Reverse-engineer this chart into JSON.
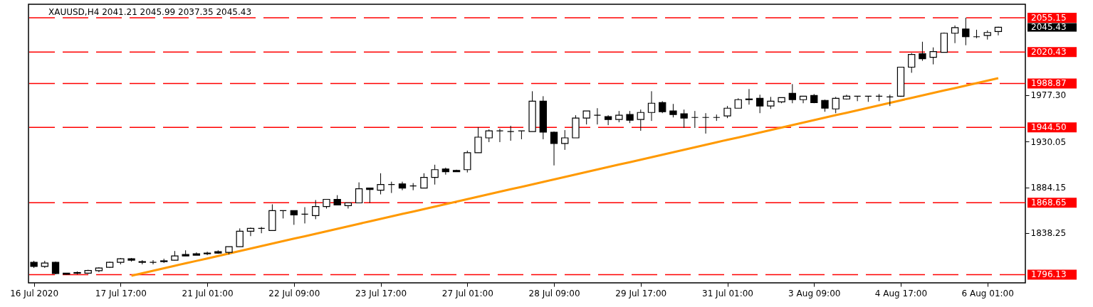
{
  "chart_data": {
    "type": "candlestick",
    "title": "XAUUSD,H4 2041.21 2045.99 2037.35 2045.43",
    "categories": [
      "16 Jul 2020",
      null,
      null,
      null,
      null,
      null,
      null,
      null,
      "17 Jul 17:00",
      null,
      null,
      null,
      null,
      null,
      null,
      null,
      "21 Jul 01:00",
      null,
      null,
      null,
      null,
      null,
      null,
      null,
      "22 Jul 09:00",
      null,
      null,
      null,
      null,
      null,
      null,
      null,
      "23 Jul 17:00",
      null,
      null,
      null,
      null,
      null,
      null,
      null,
      "27 Jul 01:00",
      null,
      null,
      null,
      null,
      null,
      null,
      null,
      "28 Jul 09:00",
      null,
      null,
      null,
      null,
      null,
      null,
      null,
      "29 Jul 17:00",
      null,
      null,
      null,
      null,
      null,
      null,
      null,
      "31 Jul 01:00",
      null,
      null,
      null,
      null,
      null,
      null,
      null,
      "3 Aug 09:00",
      null,
      null,
      null,
      null,
      null,
      null,
      null,
      "4 Aug 17:00",
      null,
      null,
      null,
      null,
      null,
      null,
      null,
      "6 Aug 01:00",
      null
    ],
    "ohlc": [
      [
        1808.5,
        1810.0,
        1802.8,
        1804.3
      ],
      [
        1804.3,
        1810.0,
        1802.8,
        1807.8
      ],
      [
        1808.5,
        1809.2,
        1796.4,
        1797.1
      ],
      [
        1797.5,
        1797.8,
        1796.13,
        1796.4
      ],
      [
        1797.5,
        1799.3,
        1796.4,
        1798.2
      ],
      [
        1797.5,
        1801.0,
        1796.8,
        1800.3
      ],
      [
        1800.0,
        1803.5,
        1798.5,
        1802.8
      ],
      [
        1803.5,
        1809.2,
        1802.8,
        1808.5
      ],
      [
        1808.5,
        1812.8,
        1806.4,
        1812.1
      ],
      [
        1812.1,
        1812.8,
        1809.2,
        1810.7
      ],
      [
        1809.2,
        1810.7,
        1806.4,
        1808.5
      ],
      [
        1808.5,
        1810.7,
        1806.4,
        1808.5
      ],
      [
        1809.2,
        1812.1,
        1807.8,
        1810.0
      ],
      [
        1810.7,
        1819.9,
        1810.4,
        1814.9
      ],
      [
        1816.4,
        1820.6,
        1814.9,
        1814.9
      ],
      [
        1817.1,
        1818.5,
        1815.7,
        1815.7
      ],
      [
        1817.1,
        1819.2,
        1815.7,
        1817.8
      ],
      [
        1819.2,
        1820.6,
        1817.1,
        1817.8
      ],
      [
        1818.5,
        1824.2,
        1816.4,
        1824.2
      ],
      [
        1824.2,
        1842.7,
        1824.2,
        1839.9
      ],
      [
        1839.9,
        1843.5,
        1834.9,
        1842.7
      ],
      [
        1842.7,
        1844.2,
        1837.8,
        1842.7
      ],
      [
        1840.6,
        1867.0,
        1840.6,
        1860.6
      ],
      [
        1860.6,
        1860.6,
        1852.7,
        1860.6
      ],
      [
        1860.6,
        1860.6,
        1846.3,
        1856.3
      ],
      [
        1857.0,
        1864.1,
        1847.7,
        1857.0
      ],
      [
        1855.6,
        1871.3,
        1852.0,
        1864.8
      ],
      [
        1864.8,
        1872.0,
        1862.7,
        1872.0
      ],
      [
        1872.0,
        1876.2,
        1866.3,
        1866.3
      ],
      [
        1865.6,
        1868.4,
        1862.7,
        1868.4
      ],
      [
        1868.4,
        1889.1,
        1868.4,
        1882.7
      ],
      [
        1883.4,
        1883.4,
        1868.4,
        1881.9
      ],
      [
        1881.2,
        1898.3,
        1877.0,
        1886.9
      ],
      [
        1886.9,
        1889.8,
        1878.4,
        1886.9
      ],
      [
        1887.6,
        1889.8,
        1881.2,
        1883.4
      ],
      [
        1885.5,
        1888.4,
        1881.2,
        1885.5
      ],
      [
        1883.4,
        1898.3,
        1883.4,
        1894.1
      ],
      [
        1894.1,
        1906.9,
        1886.9,
        1901.9
      ],
      [
        1902.6,
        1904.0,
        1896.9,
        1899.8
      ],
      [
        1901.2,
        1901.9,
        1899.8,
        1899.8
      ],
      [
        1901.9,
        1921.1,
        1899.1,
        1919.0
      ],
      [
        1919.0,
        1944.7,
        1919.0,
        1934.7
      ],
      [
        1934.0,
        1942.5,
        1929.7,
        1941.1
      ],
      [
        1941.1,
        1943.2,
        1929.7,
        1941.1
      ],
      [
        1940.4,
        1946.1,
        1931.1,
        1940.4
      ],
      [
        1941.1,
        1941.1,
        1932.6,
        1941.1
      ],
      [
        1940.4,
        1981.0,
        1940.4,
        1971.0
      ],
      [
        1971.0,
        1976.0,
        1932.6,
        1939.7
      ],
      [
        1939.7,
        1940.4,
        1906.2,
        1928.3
      ],
      [
        1928.3,
        1941.8,
        1921.9,
        1934.0
      ],
      [
        1934.0,
        1956.8,
        1934.0,
        1953.9
      ],
      [
        1953.9,
        1961.1,
        1947.5,
        1961.1
      ],
      [
        1956.8,
        1963.9,
        1947.5,
        1956.8
      ],
      [
        1955.4,
        1956.8,
        1946.8,
        1952.5
      ],
      [
        1952.5,
        1961.1,
        1949.7,
        1956.8
      ],
      [
        1957.5,
        1961.1,
        1948.9,
        1951.8
      ],
      [
        1952.5,
        1962.5,
        1941.1,
        1959.6
      ],
      [
        1959.6,
        1981.0,
        1951.1,
        1968.9
      ],
      [
        1969.6,
        1971.0,
        1958.9,
        1960.3
      ],
      [
        1961.1,
        1968.2,
        1954.6,
        1957.5
      ],
      [
        1958.2,
        1962.5,
        1944.0,
        1953.9
      ],
      [
        1954.6,
        1961.1,
        1944.0,
        1954.6
      ],
      [
        1954.6,
        1958.9,
        1938.3,
        1954.6
      ],
      [
        1954.6,
        1957.5,
        1951.1,
        1954.6
      ],
      [
        1956.1,
        1966.1,
        1953.9,
        1963.9
      ],
      [
        1963.9,
        1973.9,
        1963.9,
        1972.5
      ],
      [
        1972.5,
        1983.2,
        1967.5,
        1973.2
      ],
      [
        1973.9,
        1977.5,
        1958.9,
        1966.1
      ],
      [
        1966.1,
        1975.3,
        1963.2,
        1971.0
      ],
      [
        1970.3,
        1974.6,
        1968.9,
        1974.6
      ],
      [
        1978.9,
        1988.2,
        1968.9,
        1972.5
      ],
      [
        1972.5,
        1976.0,
        1968.9,
        1976.0
      ],
      [
        1976.7,
        1978.2,
        1968.9,
        1969.6
      ],
      [
        1971.8,
        1972.5,
        1960.3,
        1963.9
      ],
      [
        1963.2,
        1975.3,
        1958.9,
        1973.9
      ],
      [
        1973.2,
        1977.5,
        1972.5,
        1976.0
      ],
      [
        1976.0,
        1976.0,
        1971.0,
        1976.0
      ],
      [
        1976.0,
        1976.0,
        1970.3,
        1976.0
      ],
      [
        1976.0,
        1978.2,
        1971.0,
        1976.0
      ],
      [
        1975.3,
        1977.5,
        1966.1,
        1975.3
      ],
      [
        1976.0,
        2005.3,
        1975.3,
        2005.3
      ],
      [
        2005.3,
        2019.5,
        1999.6,
        2018.1
      ],
      [
        2018.8,
        2030.9,
        2011.7,
        2013.8
      ],
      [
        2015.2,
        2025.2,
        2008.1,
        2020.9
      ],
      [
        2020.2,
        2040.2,
        2020.2,
        2039.5
      ],
      [
        2039.5,
        2047.3,
        2029.5,
        2045.2
      ],
      [
        2043.7,
        2055.15,
        2027.4,
        2035.9
      ],
      [
        2035.9,
        2043.0,
        2034.5,
        2035.9
      ],
      [
        2037.3,
        2042.3,
        2033.1,
        2040.2
      ],
      [
        2041.21,
        2045.99,
        2037.35,
        2045.43
      ]
    ],
    "series": [
      {
        "type": "line",
        "color": "#ff9900",
        "values": [
          null,
          null,
          null,
          null,
          null,
          null,
          null,
          null,
          null,
          1795.0,
          1797.5,
          1800.0,
          1802.5,
          1805.0,
          1807.5,
          1809.9,
          1812.4,
          1814.9,
          1817.4,
          1819.9,
          1822.4,
          1824.9,
          1827.4,
          1829.9,
          1832.4,
          1834.8,
          1837.3,
          1839.8,
          1842.3,
          1844.8,
          1847.3,
          1849.8,
          1852.3,
          1854.8,
          1857.3,
          1859.7,
          1862.2,
          1864.7,
          1867.2,
          1869.7,
          1872.2,
          1874.7,
          1877.2,
          1879.7,
          1882.2,
          1884.6,
          1887.1,
          1889.6,
          1892.1,
          1894.6,
          1897.1,
          1899.6,
          1902.1,
          1904.6,
          1907.1,
          1909.5,
          1912.0,
          1914.5,
          1917.0,
          1919.5,
          1922.0,
          1924.5,
          1927.0,
          1929.5,
          1932.0,
          1934.4,
          1936.9,
          1939.4,
          1941.9,
          1944.4,
          1946.9,
          1949.4,
          1951.9,
          1954.4,
          1956.9,
          1959.3,
          1961.8,
          1964.3,
          1966.8,
          1969.3,
          1971.8,
          1974.3,
          1976.8,
          1979.3,
          1981.8,
          1984.2,
          1986.7,
          1989.2,
          1991.7,
          1994.2
        ]
      }
    ],
    "ylim": [
      1787.8,
      2068.7
    ],
    "yticks": [
      1838.25,
      1884.15,
      1930.05,
      {
        "value": 1977.3,
        "label": "1977.30"
      }
    ],
    "ref_lines": [
      {
        "axis": "y",
        "value": 2055.15,
        "label": "2055.15",
        "color": "#ff0000",
        "line_style": "dashed"
      },
      {
        "axis": "y",
        "value": 2020.43,
        "label": "2020.43",
        "color": "#ff0000",
        "line_style": "dashed"
      },
      {
        "axis": "y",
        "value": 1988.87,
        "label": "1988.87",
        "color": "#ff0000",
        "line_style": "dashed"
      },
      {
        "axis": "y",
        "value": 1944.5,
        "label": "1944.50",
        "color": "#ff0000",
        "line_style": "dashed"
      },
      {
        "axis": "y",
        "value": 1868.65,
        "label": "1868.65",
        "color": "#ff0000",
        "line_style": "dashed"
      },
      {
        "axis": "y",
        "value": 1796.13,
        "label": "1796.13",
        "color": "#ff0000",
        "line_style": "dashed"
      }
    ],
    "annotations": [
      "2045.43"
    ]
  }
}
